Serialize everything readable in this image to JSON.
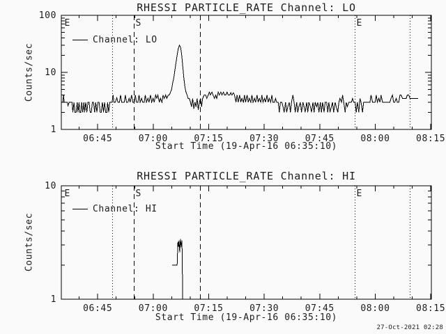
{
  "window": {
    "background": "#fafafa",
    "stroke": "#000000",
    "text_color": "#1c1c1c",
    "generated_timestamp": "27-Oct-2021 02:28"
  },
  "chart_data": [
    {
      "type": "line",
      "title": "RHESSI PARTICLE_RATE Channel: LO",
      "xlabel": "Start Time (19-Apr-16 06:35:10)",
      "ylabel": "Counts/sec",
      "legend": {
        "label": "Channel: LO",
        "position": "top-left"
      },
      "yscale": "log",
      "ylim": [
        1,
        100
      ],
      "yticks": [
        {
          "v": 1,
          "label": "1"
        },
        {
          "v": 10,
          "label": "10"
        },
        {
          "v": 100,
          "label": "100"
        }
      ],
      "x_start_label": "06:35:10",
      "x_range_minutes": [
        0,
        100
      ],
      "xticks": [
        {
          "t": 9.83,
          "label": "06:45"
        },
        {
          "t": 24.83,
          "label": "07:00"
        },
        {
          "t": 39.83,
          "label": "07:15"
        },
        {
          "t": 54.83,
          "label": "07:30"
        },
        {
          "t": 69.83,
          "label": "07:45"
        },
        {
          "t": 84.83,
          "label": "08:00"
        },
        {
          "t": 99.83,
          "label": "08:15"
        }
      ],
      "xminor_start": 4.83,
      "xminor_step": 5,
      "markers": [
        {
          "t": 0.45,
          "style": "none",
          "label": "E"
        },
        {
          "t": 13.75,
          "style": "dotted",
          "label": ""
        },
        {
          "t": 19.6,
          "style": "dashed",
          "label": "S"
        },
        {
          "t": 37.4,
          "style": "dashed",
          "label": ""
        },
        {
          "t": 79.2,
          "style": "dotted",
          "label": "E"
        },
        {
          "t": 94.1,
          "style": "dotted",
          "label": ""
        }
      ],
      "series": [
        {
          "name": "Channel: LO",
          "t": [
            0,
            0.4,
            0.6,
            0.8,
            1.6,
            1.8,
            2.1,
            2.9,
            3.1,
            3.4,
            3.7,
            4.0,
            4.3,
            4.5,
            4.8,
            5.0,
            5.3,
            5.5,
            5.8,
            6.1,
            6.3,
            6.6,
            6.9,
            7.2,
            7.5,
            7.8,
            8.1,
            8.4,
            8.7,
            9.0,
            9.3,
            9.6,
            9.9,
            10.2,
            10.5,
            10.8,
            11.1,
            11.4,
            11.7,
            12.0,
            12.3,
            12.5,
            12.8,
            13.1,
            13.4,
            13.7,
            14.0,
            14.2,
            14.6,
            15.0,
            15.3,
            15.7,
            16.0,
            16.3,
            16.7,
            17.0,
            17.3,
            17.6,
            18.0,
            18.3,
            18.6,
            19.0,
            19.3,
            19.7,
            20.0,
            20.3,
            20.7,
            21.0,
            21.3,
            21.7,
            22.0,
            22.4,
            22.7,
            23.0,
            23.4,
            23.7,
            24.1,
            24.4,
            24.8,
            25.1,
            25.5,
            25.8,
            26.1,
            26.5,
            26.8,
            27.2,
            27.5,
            27.8,
            28.2,
            28.5,
            28.9,
            29.2,
            29.5,
            29.8,
            30.1,
            30.4,
            30.7,
            31.0,
            31.3,
            31.6,
            31.9,
            32.2,
            32.5,
            32.8,
            33.1,
            33.4,
            33.7,
            34.0,
            34.3,
            34.6,
            34.9,
            35.2,
            35.5,
            35.8,
            36.1,
            36.4,
            36.7,
            37.0,
            37.3,
            37.6,
            37.9,
            38.2,
            38.6,
            39.0,
            39.3,
            39.7,
            40.0,
            40.3,
            40.7,
            41.0,
            41.4,
            41.7,
            42.0,
            42.4,
            42.7,
            43.1,
            43.4,
            43.8,
            44.1,
            44.4,
            44.8,
            45.1,
            45.5,
            45.8,
            46.1,
            46.5,
            46.8,
            47.2,
            47.5,
            47.8,
            48.2,
            48.5,
            48.8,
            49.2,
            49.5,
            49.8,
            50.2,
            50.5,
            50.8,
            51.2,
            51.5,
            51.8,
            52.2,
            52.5,
            52.9,
            53.2,
            53.5,
            53.9,
            54.2,
            54.5,
            54.9,
            55.2,
            55.6,
            55.9,
            56.2,
            56.6,
            56.9,
            57.2,
            57.6,
            57.9,
            58.2,
            58.6,
            58.9,
            59.2,
            59.6,
            59.9,
            60.2,
            60.6,
            60.9,
            61.2,
            61.6,
            61.9,
            62.2,
            62.6,
            62.9,
            63.2,
            63.6,
            63.9,
            64.2,
            64.6,
            64.9,
            65.3,
            65.6,
            65.9,
            66.3,
            66.6,
            66.9,
            67.3,
            67.6,
            68.0,
            68.3,
            68.6,
            69.0,
            69.3,
            69.6,
            70.0,
            70.3,
            70.6,
            71.0,
            71.3,
            71.7,
            72.0,
            72.3,
            72.6,
            73.0,
            73.3,
            73.6,
            74.0,
            74.3,
            74.7,
            75.0,
            75.3,
            75.7,
            76.0,
            76.3,
            76.7,
            77.0,
            77.3,
            77.7,
            78.0,
            78.4,
            78.7,
            79.0,
            79.4,
            79.7,
            80.0,
            80.4,
            80.7,
            81.0,
            81.4,
            81.7,
            82.1,
            82.4,
            82.7,
            83.1,
            83.4,
            83.7,
            84.1,
            84.4,
            84.8,
            85.1,
            85.4,
            85.8,
            86.1,
            86.4,
            86.8,
            87.1,
            87.5,
            87.8,
            88.1,
            88.5,
            88.8,
            89.1,
            89.5,
            89.8,
            90.1,
            90.5,
            90.8,
            91.2,
            91.5,
            91.8,
            92.2,
            92.5,
            92.8,
            93.2,
            93.5,
            93.9,
            94.2,
            94.5,
            94.9,
            95.2,
            95.5,
            95.9,
            96.2,
            96.4
          ],
          "v": [
            3,
            3,
            4,
            3,
            3,
            2.6,
            3,
            3,
            2,
            3,
            2,
            2,
            3,
            2,
            3,
            2,
            2,
            3,
            2,
            3,
            2,
            3,
            2,
            3,
            3,
            2,
            2,
            3,
            3,
            2,
            3,
            2,
            3,
            3,
            2,
            2,
            3,
            2,
            3,
            2,
            2,
            3,
            2,
            3,
            3,
            3,
            4,
            3,
            3,
            3.6,
            3,
            3,
            4,
            3,
            3,
            3,
            4,
            3,
            3,
            3.5,
            3,
            4,
            3,
            3,
            4,
            3,
            3,
            4,
            3,
            3.5,
            3,
            3,
            4,
            3,
            3.5,
            3,
            4,
            3,
            3.5,
            3,
            4,
            3.5,
            4,
            3,
            3.5,
            3,
            4,
            3.5,
            4,
            3.5,
            4,
            4,
            4.5,
            5,
            6.5,
            8,
            11,
            15,
            20,
            26,
            30,
            28,
            21,
            13,
            8,
            5.5,
            4.5,
            4,
            3.5,
            3.5,
            3,
            2.5,
            3.5,
            2.3,
            3,
            2.5,
            3.5,
            2.2,
            3,
            3.5,
            2.5,
            3.5,
            4,
            4,
            3.5,
            4,
            4.5,
            4,
            4.5,
            4,
            3.5,
            4,
            3.5,
            4.5,
            4,
            4.5,
            4,
            4.5,
            4,
            4,
            4.5,
            4,
            4,
            4.4,
            4,
            4.4,
            4,
            3,
            4,
            3,
            4,
            3,
            3.5,
            3,
            4,
            3,
            4,
            3,
            3.5,
            3,
            4,
            3,
            3.5,
            3,
            4,
            3,
            3.5,
            3,
            4,
            3,
            3.5,
            3,
            4,
            3,
            3.5,
            3,
            4,
            3,
            3,
            3.5,
            3,
            3,
            2,
            3,
            3,
            2.5,
            2,
            3,
            2,
            2.5,
            3,
            2,
            3,
            4,
            3,
            2,
            3,
            2,
            2.5,
            3,
            2,
            3,
            2.5,
            2,
            3,
            2,
            3,
            2.5,
            2,
            3,
            2,
            3,
            2.5,
            3,
            2,
            3,
            2,
            3,
            2,
            3,
            3,
            2,
            3,
            2,
            2.5,
            3,
            2,
            3,
            2.5,
            2,
            3,
            3.5,
            3,
            4,
            3,
            2,
            3,
            2.5,
            3,
            3,
            3,
            3.5,
            3,
            3,
            2,
            3,
            2,
            3.5,
            3,
            2,
            3,
            3,
            3,
            3,
            3,
            3,
            4,
            3,
            3,
            3,
            4,
            3,
            3.5,
            3,
            4,
            3,
            3,
            3,
            3,
            3,
            3,
            3,
            3.5,
            4,
            3,
            3,
            3.5,
            3,
            3,
            4,
            4,
            3.5,
            3.5,
            3.5,
            3.5,
            4,
            4,
            3.5,
            3.5,
            3.5,
            3.5,
            3.5,
            3.5,
            3.5,
            3.5
          ]
        }
      ]
    },
    {
      "type": "line",
      "title": "RHESSI PARTICLE_RATE Channel: HI",
      "xlabel": "Start Time (19-Apr-16 06:35:10)",
      "ylabel": "Counts/sec",
      "legend": {
        "label": "Channel: HI",
        "position": "top-left"
      },
      "yscale": "log",
      "ylim": [
        1,
        10
      ],
      "yticks": [
        {
          "v": 1,
          "label": "1"
        },
        {
          "v": 10,
          "label": "10"
        }
      ],
      "x_start_label": "06:35:10",
      "x_range_minutes": [
        0,
        100
      ],
      "xticks": [
        {
          "t": 9.83,
          "label": "06:45"
        },
        {
          "t": 24.83,
          "label": "07:00"
        },
        {
          "t": 39.83,
          "label": "07:15"
        },
        {
          "t": 54.83,
          "label": "07:30"
        },
        {
          "t": 69.83,
          "label": "07:45"
        },
        {
          "t": 84.83,
          "label": "08:00"
        },
        {
          "t": 99.83,
          "label": "08:15"
        }
      ],
      "xminor_start": 4.83,
      "xminor_step": 5,
      "markers": [
        {
          "t": 0.45,
          "style": "none",
          "label": "E"
        },
        {
          "t": 13.75,
          "style": "dotted",
          "label": ""
        },
        {
          "t": 19.6,
          "style": "dashed",
          "label": "S"
        },
        {
          "t": 37.4,
          "style": "dashed",
          "label": ""
        },
        {
          "t": 79.2,
          "style": "dotted",
          "label": "E"
        },
        {
          "t": 94.1,
          "style": "dotted",
          "label": ""
        }
      ],
      "series": [
        {
          "name": "Channel: HI",
          "t": [
            29.9,
            31.3,
            31.5,
            31.7,
            31.8,
            32.0,
            32.2,
            32.4,
            32.6,
            32.7,
            32.8,
            33.2
          ],
          "v": [
            2,
            2,
            3.2,
            2.9,
            3.3,
            2.6,
            3.4,
            2.9,
            3.3,
            2.0,
            1.0,
            1.0
          ]
        }
      ]
    }
  ]
}
